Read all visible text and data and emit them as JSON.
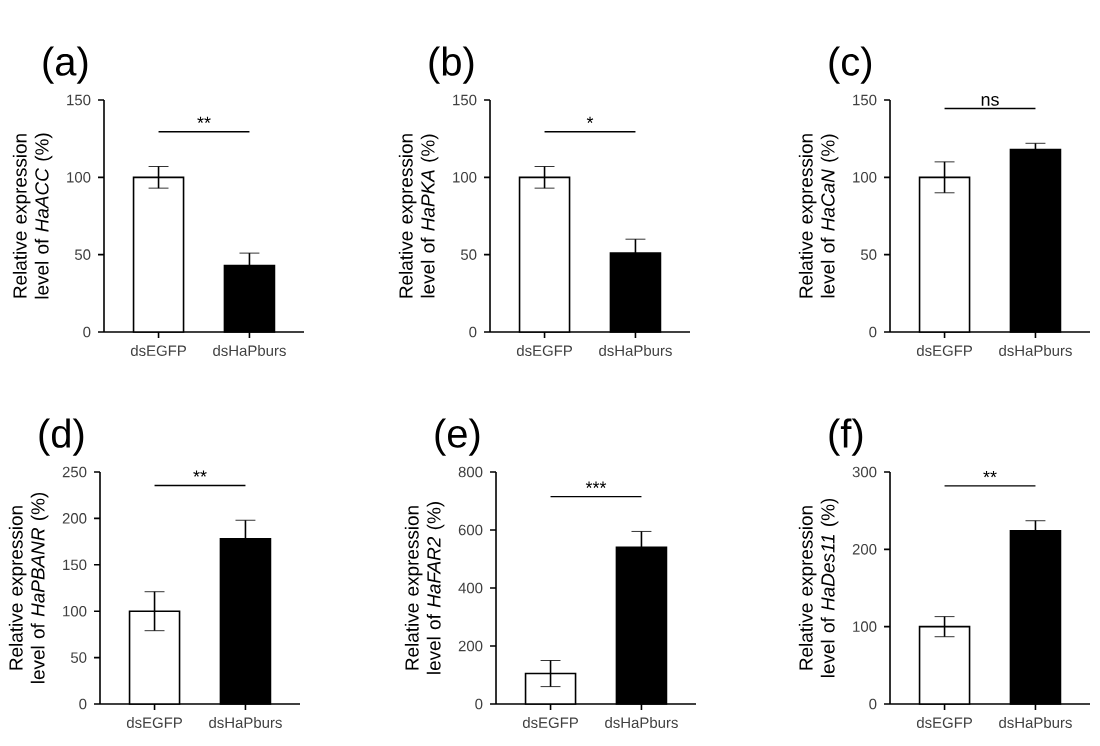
{
  "chart_data": [
    {
      "type": "bar",
      "title": "(a)",
      "ylabel": "Relative expression level of *HaACC* (%)",
      "categories": [
        "dsEGFP",
        "dsHaPburs"
      ],
      "values": [
        100,
        43
      ],
      "errors": [
        7,
        8
      ],
      "colors": [
        "#ffffff",
        "#000000"
      ],
      "ylim": [
        0,
        150
      ],
      "yticks": [
        0,
        50,
        100,
        150
      ],
      "annotations": [
        "**"
      ]
    },
    {
      "type": "bar",
      "title": "(b)",
      "ylabel": "Relative expression level of *HaPKA* (%)",
      "categories": [
        "dsEGFP",
        "dsHaPburs"
      ],
      "values": [
        100,
        51
      ],
      "errors": [
        7,
        9
      ],
      "colors": [
        "#ffffff",
        "#000000"
      ],
      "ylim": [
        0,
        150
      ],
      "yticks": [
        0,
        50,
        100,
        150
      ],
      "annotations": [
        "*"
      ]
    },
    {
      "type": "bar",
      "title": "(c)",
      "ylabel": "Relative expression level of *HaCaN* (%)",
      "categories": [
        "dsEGFP",
        "dsHaPburs"
      ],
      "values": [
        100,
        118
      ],
      "errors": [
        10,
        4
      ],
      "colors": [
        "#ffffff",
        "#000000"
      ],
      "ylim": [
        0,
        150
      ],
      "yticks": [
        0,
        50,
        100,
        150
      ],
      "annotations": [
        "ns"
      ]
    },
    {
      "type": "bar",
      "title": "(d)",
      "ylabel": "Relative expression level of *HaPBANR* (%)",
      "categories": [
        "dsEGFP",
        "dsHaPburs"
      ],
      "values": [
        100,
        178
      ],
      "errors": [
        21,
        20
      ],
      "colors": [
        "#ffffff",
        "#000000"
      ],
      "ylim": [
        0,
        250
      ],
      "yticks": [
        0,
        50,
        100,
        150,
        200,
        250
      ],
      "annotations": [
        "**"
      ]
    },
    {
      "type": "bar",
      "title": "(e)",
      "ylabel": "Relative expression level of *HaFAR2* (%)",
      "categories": [
        "dsEGFP",
        "dsHaPburs"
      ],
      "values": [
        105,
        540
      ],
      "errors": [
        45,
        55
      ],
      "colors": [
        "#ffffff",
        "#000000"
      ],
      "ylim": [
        0,
        800
      ],
      "yticks": [
        0,
        200,
        400,
        600,
        800
      ],
      "annotations": [
        "***"
      ]
    },
    {
      "type": "bar",
      "title": "(f)",
      "ylabel": "Relative expression level of *HaDes11* (%)",
      "categories": [
        "dsEGFP",
        "dsHaPburs"
      ],
      "values": [
        100,
        224
      ],
      "errors": [
        13,
        13
      ],
      "colors": [
        "#ffffff",
        "#000000"
      ],
      "ylim": [
        0,
        300
      ],
      "yticks": [
        0,
        100,
        200,
        300
      ],
      "annotations": [
        "**"
      ]
    }
  ]
}
